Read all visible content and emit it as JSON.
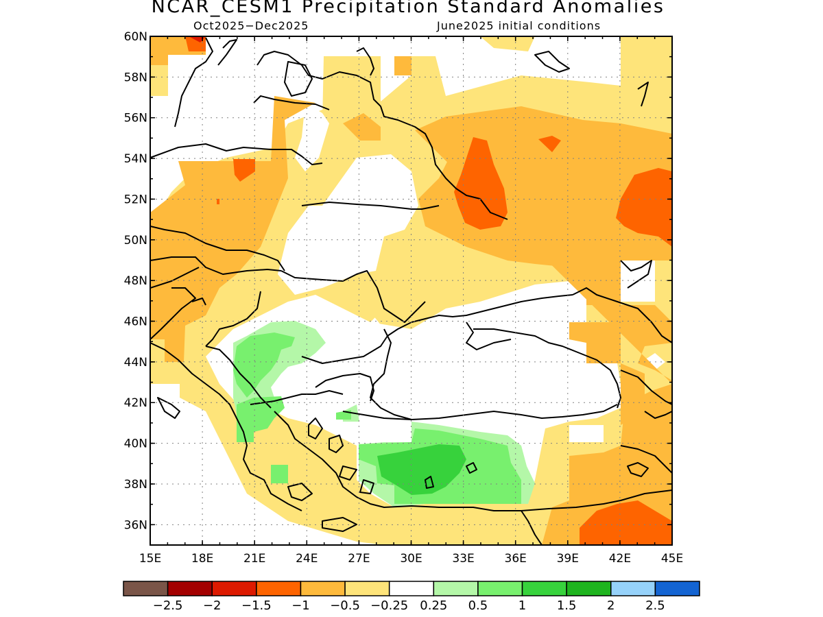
{
  "header": {
    "title": "NCAR_CESM1 Precipitation Standard Anomalies",
    "period": "Oct2025−Dec2025",
    "initial_conditions": "June2025 initial conditions"
  },
  "map": {
    "lon_range": [
      15,
      45
    ],
    "lat_range": [
      35,
      60
    ],
    "lon_ticks": [
      "15E",
      "18E",
      "21E",
      "24E",
      "27E",
      "30E",
      "33E",
      "36E",
      "39E",
      "42E",
      "45E"
    ],
    "lat_ticks": [
      "36N",
      "38N",
      "40N",
      "42N",
      "44N",
      "46N",
      "48N",
      "50N",
      "52N",
      "54N",
      "56N",
      "58N",
      "60N"
    ],
    "grid": true
  },
  "colorbar": {
    "colors": [
      "#7a5548",
      "#a30000",
      "#dd1a00",
      "#fe6400",
      "#feba3c",
      "#fee47a",
      "#ffffff",
      "#b4f7a8",
      "#78f06e",
      "#37d23c",
      "#1eb41e",
      "#96d2fa",
      "#1464d2"
    ],
    "labels": [
      "−2.5",
      "−2",
      "−1.5",
      "−1",
      "−0.5",
      "−0.25",
      "0.25",
      "0.5",
      "1",
      "1.5",
      "2",
      "2.5"
    ]
  },
  "colors": {
    "light_orange": "#fee47a",
    "orange": "#feba3c",
    "dark_orange": "#fe6400",
    "red": "#dd1a00",
    "light_green": "#b4f7a8",
    "green": "#78f06e",
    "dark_green": "#37d23c"
  }
}
